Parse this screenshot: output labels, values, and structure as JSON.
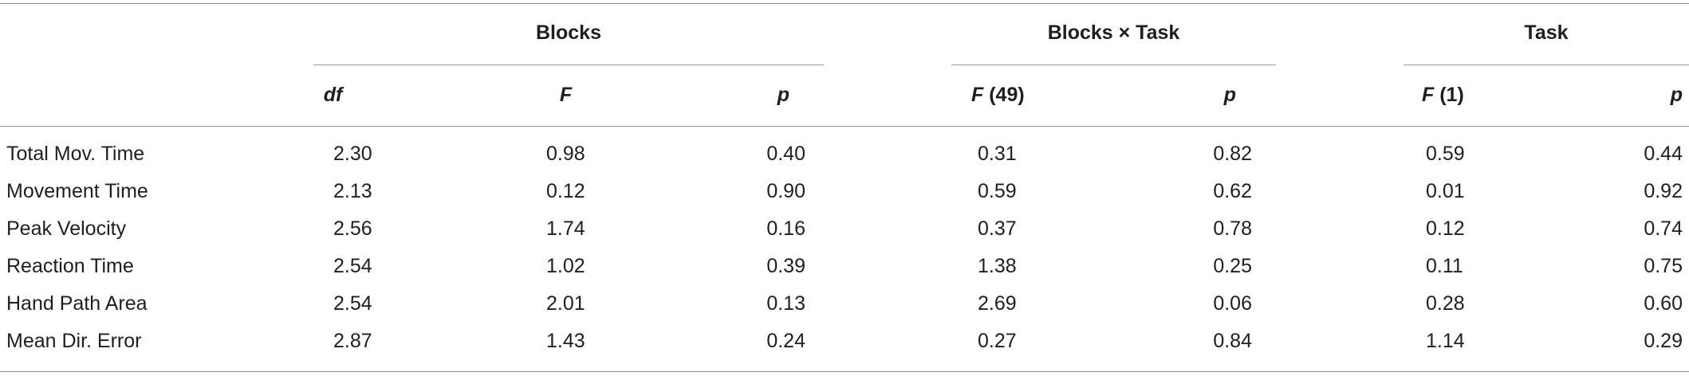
{
  "table": {
    "groups": [
      {
        "label": "Blocks"
      },
      {
        "label": "Blocks × Task"
      },
      {
        "label": "Task"
      }
    ],
    "columns": [
      {
        "italic": "df",
        "rest": ""
      },
      {
        "italic": "F",
        "rest": ""
      },
      {
        "italic": "p",
        "rest": ""
      },
      {
        "italic": "F",
        "rest": " (49)"
      },
      {
        "italic": "p",
        "rest": ""
      },
      {
        "italic": "F",
        "rest": " (1)"
      },
      {
        "italic": "p",
        "rest": ""
      }
    ],
    "rows": [
      {
        "label": "Total Mov. Time",
        "values": [
          "2.30",
          "0.98",
          "0.40",
          "0.31",
          "0.82",
          "0.59",
          "0.44"
        ]
      },
      {
        "label": "Movement Time",
        "values": [
          "2.13",
          "0.12",
          "0.90",
          "0.59",
          "0.62",
          "0.01",
          "0.92"
        ]
      },
      {
        "label": "Peak Velocity",
        "values": [
          "2.56",
          "1.74",
          "0.16",
          "0.37",
          "0.78",
          "0.12",
          "0.74"
        ]
      },
      {
        "label": "Reaction Time",
        "values": [
          "2.54",
          "1.02",
          "0.39",
          "1.38",
          "0.25",
          "0.11",
          "0.75"
        ]
      },
      {
        "label": "Hand Path Area",
        "values": [
          "2.54",
          "2.01",
          "0.13",
          "2.69",
          "0.06",
          "0.28",
          "0.60"
        ]
      },
      {
        "label": "Mean Dir. Error",
        "values": [
          "2.87",
          "1.43",
          "0.24",
          "0.27",
          "0.84",
          "1.14",
          "0.29"
        ]
      }
    ]
  }
}
